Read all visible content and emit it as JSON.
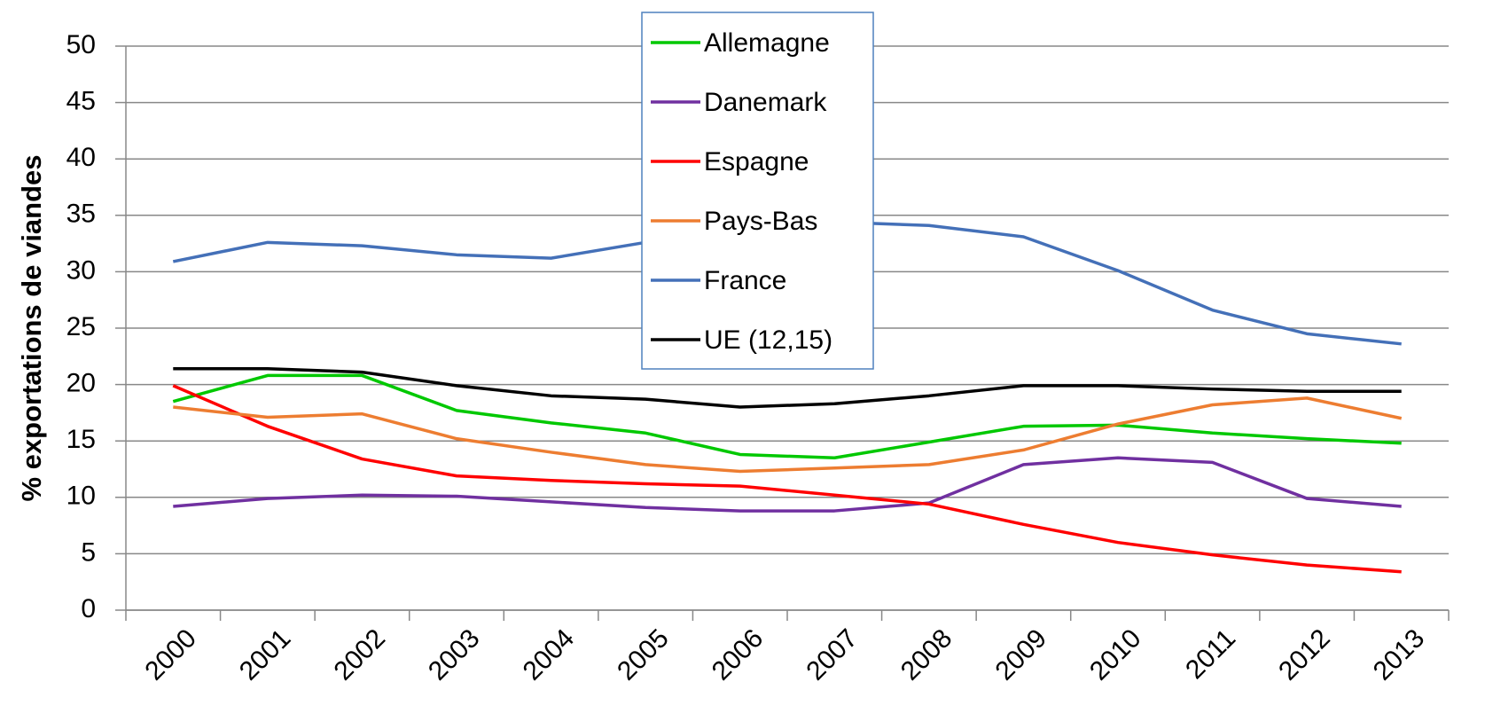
{
  "chart_data": {
    "type": "line",
    "y_label": "% exportations de viandes",
    "categories": [
      "2000",
      "2001",
      "2002",
      "2003",
      "2004",
      "2005",
      "2006",
      "2007",
      "2008",
      "2009",
      "2010",
      "2011",
      "2012",
      "2013"
    ],
    "series": [
      {
        "name": "Allemagne",
        "color": "#00c800",
        "values": [
          18.5,
          20.8,
          20.8,
          17.7,
          16.6,
          15.7,
          13.8,
          13.5,
          14.9,
          16.3,
          16.4,
          15.7,
          15.2,
          14.8
        ]
      },
      {
        "name": "Danemark",
        "color": "#7030a0",
        "values": [
          9.2,
          9.9,
          10.2,
          10.1,
          9.6,
          9.1,
          8.8,
          8.8,
          9.5,
          12.9,
          13.5,
          13.1,
          9.9,
          9.2
        ]
      },
      {
        "name": "Espagne",
        "color": "#ff0000",
        "values": [
          19.9,
          16.3,
          13.4,
          11.9,
          11.5,
          11.2,
          11.0,
          10.2,
          9.4,
          7.6,
          6.0,
          4.9,
          4.0,
          3.4
        ]
      },
      {
        "name": "Pays-Bas",
        "color": "#ed7d31",
        "values": [
          18.0,
          17.1,
          17.4,
          15.2,
          14.0,
          12.9,
          12.3,
          12.6,
          12.9,
          14.2,
          16.5,
          18.2,
          18.8,
          17.0
        ]
      },
      {
        "name": "France",
        "color": "#4470b8",
        "values": [
          30.9,
          32.6,
          32.3,
          31.5,
          31.2,
          32.6,
          34.0,
          34.4,
          34.1,
          33.1,
          30.1,
          26.6,
          24.5,
          23.6
        ]
      },
      {
        "name": "UE (12,15)",
        "color": "#000000",
        "values": [
          21.4,
          21.4,
          21.1,
          19.9,
          19.0,
          18.7,
          18.0,
          18.3,
          19.0,
          19.9,
          19.9,
          19.6,
          19.4,
          19.4
        ]
      }
    ],
    "ylim": [
      0,
      50
    ],
    "yticks": [
      0,
      5,
      10,
      15,
      20,
      25,
      30,
      35,
      40,
      45,
      50
    ],
    "grid": true,
    "legend": "top"
  }
}
